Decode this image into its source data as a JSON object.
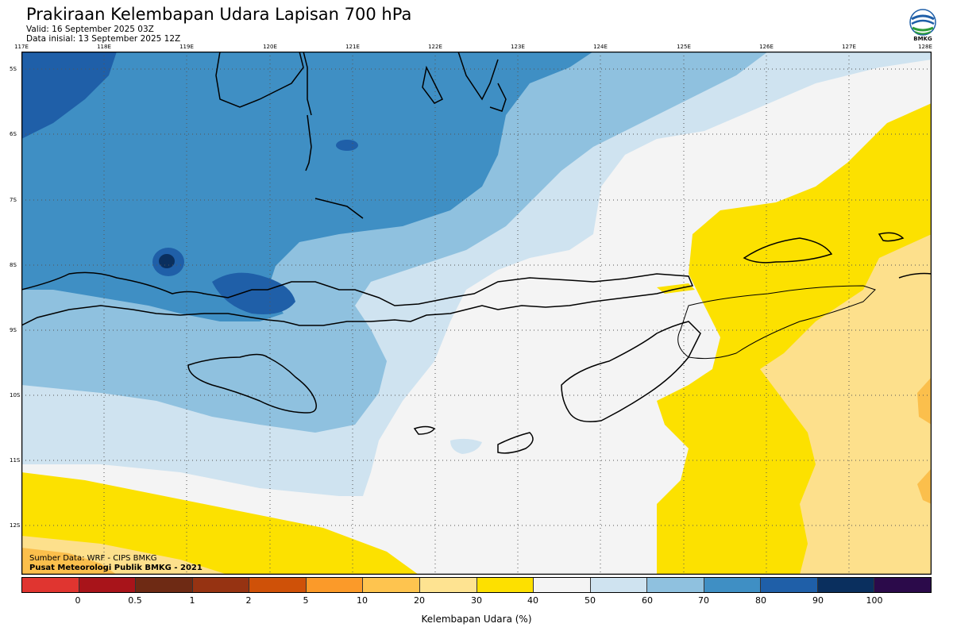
{
  "header": {
    "title": "Prakiraan Kelembapan Udara Lapisan 700 hPa",
    "valid": "Valid: 16 September 2025 03Z",
    "initial": "Data inisial: 13 September 2025 12Z",
    "logo_text": "BMKG"
  },
  "map": {
    "lon_labels": [
      "117E",
      "118E",
      "119E",
      "120E",
      "121E",
      "122E",
      "123E",
      "124E",
      "125E",
      "126E",
      "127E",
      "128E"
    ],
    "lat_labels": [
      "5S",
      "6S",
      "7S",
      "8S",
      "9S",
      "10S",
      "11S",
      "12S"
    ],
    "lon_range": [
      117,
      128
    ],
    "lat_range": [
      -4.77,
      -12.74
    ],
    "description_colors": {
      "sea_dark": "#3f8fc4",
      "sea_mid": "#8fc1df",
      "light": "#cfe3f0",
      "white": "#f4f4f4",
      "yellow": "#fce100",
      "tan": "#fde08c",
      "orange": "#fbbf4c"
    }
  },
  "credits": {
    "source": "Sumber Data: WRF - CIPS BMKG",
    "org": "Pusat Meteorologi Publik BMKG - 2021"
  },
  "colorbar": {
    "title": "Kelembapan Udara (%)",
    "ticks": [
      "0",
      "0.5",
      "1",
      "2",
      "5",
      "10",
      "20",
      "30",
      "40",
      "50",
      "60",
      "70",
      "80",
      "90",
      "100"
    ],
    "colors": [
      "#e03530",
      "#a8141a",
      "#6e2a14",
      "#963312",
      "#cf5108",
      "#fb9a29",
      "#fec44f",
      "#fee391",
      "#fde000",
      "#f4f4f4",
      "#cfe3f0",
      "#8fc1df",
      "#3f8fc4",
      "#1f5fa8",
      "#0a2f5e",
      "#2b0a4a"
    ]
  }
}
